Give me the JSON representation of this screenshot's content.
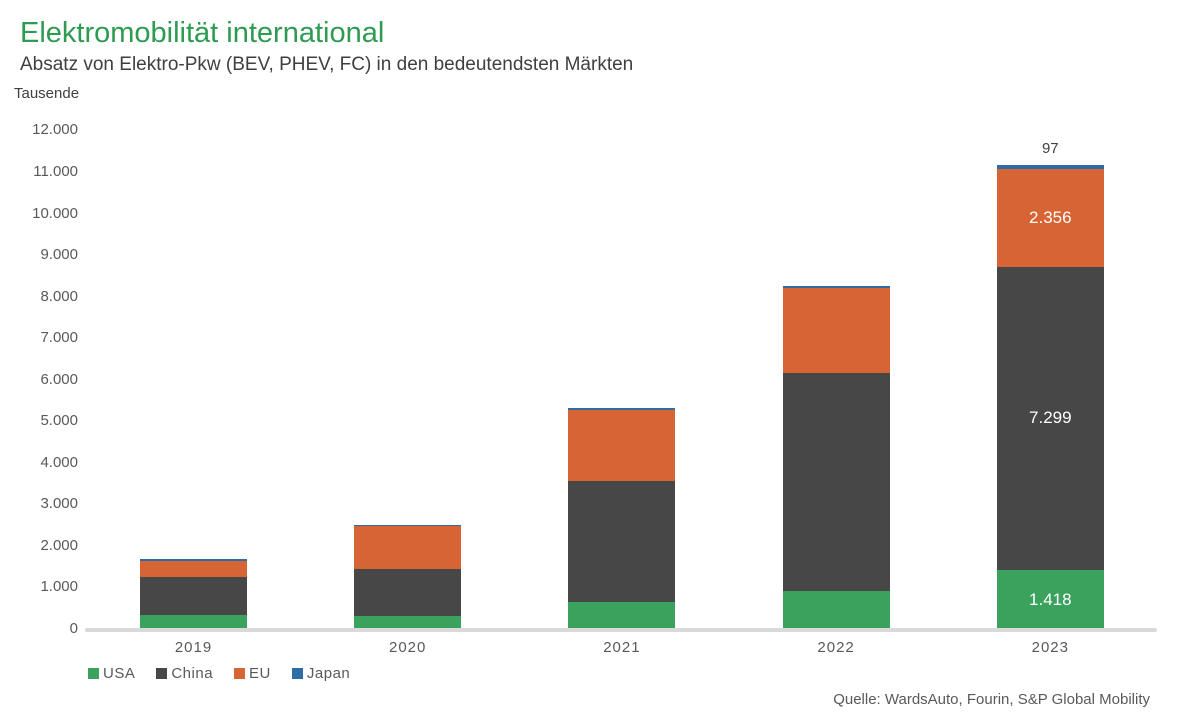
{
  "header": {
    "title": "Elektromobilität international",
    "subtitle": "Absatz von Elektro-Pkw (BEV, PHEV, FC) in den bedeutendsten Märkten",
    "unit_label": "Tausende"
  },
  "source": "Quelle: WardsAuto, Fourin, S&P Global Mobility",
  "colors": {
    "title_green": "#2d9b52",
    "usa": "#3ba25d",
    "china": "#474747",
    "eu": "#d76434",
    "japan": "#2e6ca6",
    "axis_line": "#d9d9d9",
    "tick_text": "#595959",
    "inside_label": "#ffffff",
    "above_label": "#404040"
  },
  "chart_data": {
    "type": "bar",
    "stacked": true,
    "grid": false,
    "legend_position": "bottom-left",
    "unit": "Tausende",
    "title": "Elektromobilität international",
    "subtitle": "Absatz von Elektro-Pkw (BEV, PHEV, FC) in den bedeutendsten Märkten",
    "categories": [
      "2019",
      "2020",
      "2021",
      "2022",
      "2023"
    ],
    "series": [
      {
        "name": "USA",
        "color_key": "usa",
        "values": [
          330,
          315,
          640,
          920,
          1418
        ],
        "labels": [
          null,
          null,
          null,
          null,
          "1.418"
        ]
      },
      {
        "name": "China",
        "color_key": "china",
        "values": [
          920,
          1125,
          2925,
          5240,
          7299
        ],
        "labels": [
          null,
          null,
          null,
          null,
          "7.299"
        ]
      },
      {
        "name": "EU",
        "color_key": "eu",
        "values": [
          380,
          1035,
          1715,
          2045,
          2356
        ],
        "labels": [
          null,
          null,
          null,
          null,
          "2.356"
        ]
      },
      {
        "name": "Japan",
        "color_key": "japan",
        "values": [
          45,
          40,
          45,
          60,
          97
        ],
        "labels": [
          null,
          null,
          null,
          null,
          "97"
        ]
      }
    ],
    "ylim": [
      0,
      12000
    ],
    "ytick_step": 1000,
    "ytick_labels": [
      "0",
      "1.000",
      "2.000",
      "3.000",
      "4.000",
      "5.000",
      "6.000",
      "7.000",
      "8.000",
      "9.000",
      "10.000",
      "11.000",
      "12.000"
    ],
    "legend": [
      "USA",
      "China",
      "EU",
      "Japan"
    ]
  }
}
